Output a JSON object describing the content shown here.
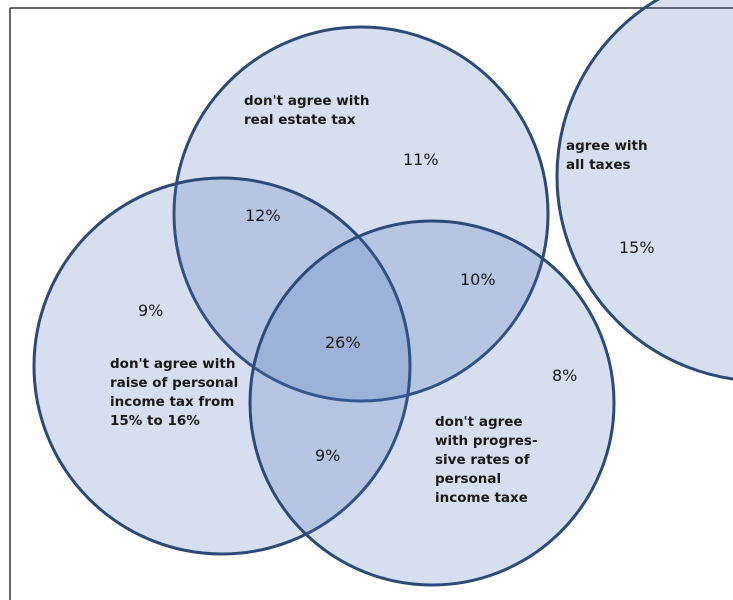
{
  "sets": [
    {
      "label": [
        "don't agree with",
        "real estate tax"
      ]
    },
    {
      "label": [
        "don't agree with",
        "raise of personal",
        "income tax from",
        "15% to 16%"
      ]
    },
    {
      "label": [
        "don't agree",
        "with progres-",
        "sive rates of",
        "personal",
        "income taxe"
      ]
    },
    {
      "label": [
        "agree with",
        "all taxes"
      ]
    }
  ],
  "regions": [
    {
      "label": "11%"
    },
    {
      "label": "12%"
    },
    {
      "label": "10%"
    },
    {
      "label": "9%"
    },
    {
      "label": "26%"
    },
    {
      "label": "9%"
    },
    {
      "label": "8%"
    },
    {
      "label": "15%"
    }
  ]
}
